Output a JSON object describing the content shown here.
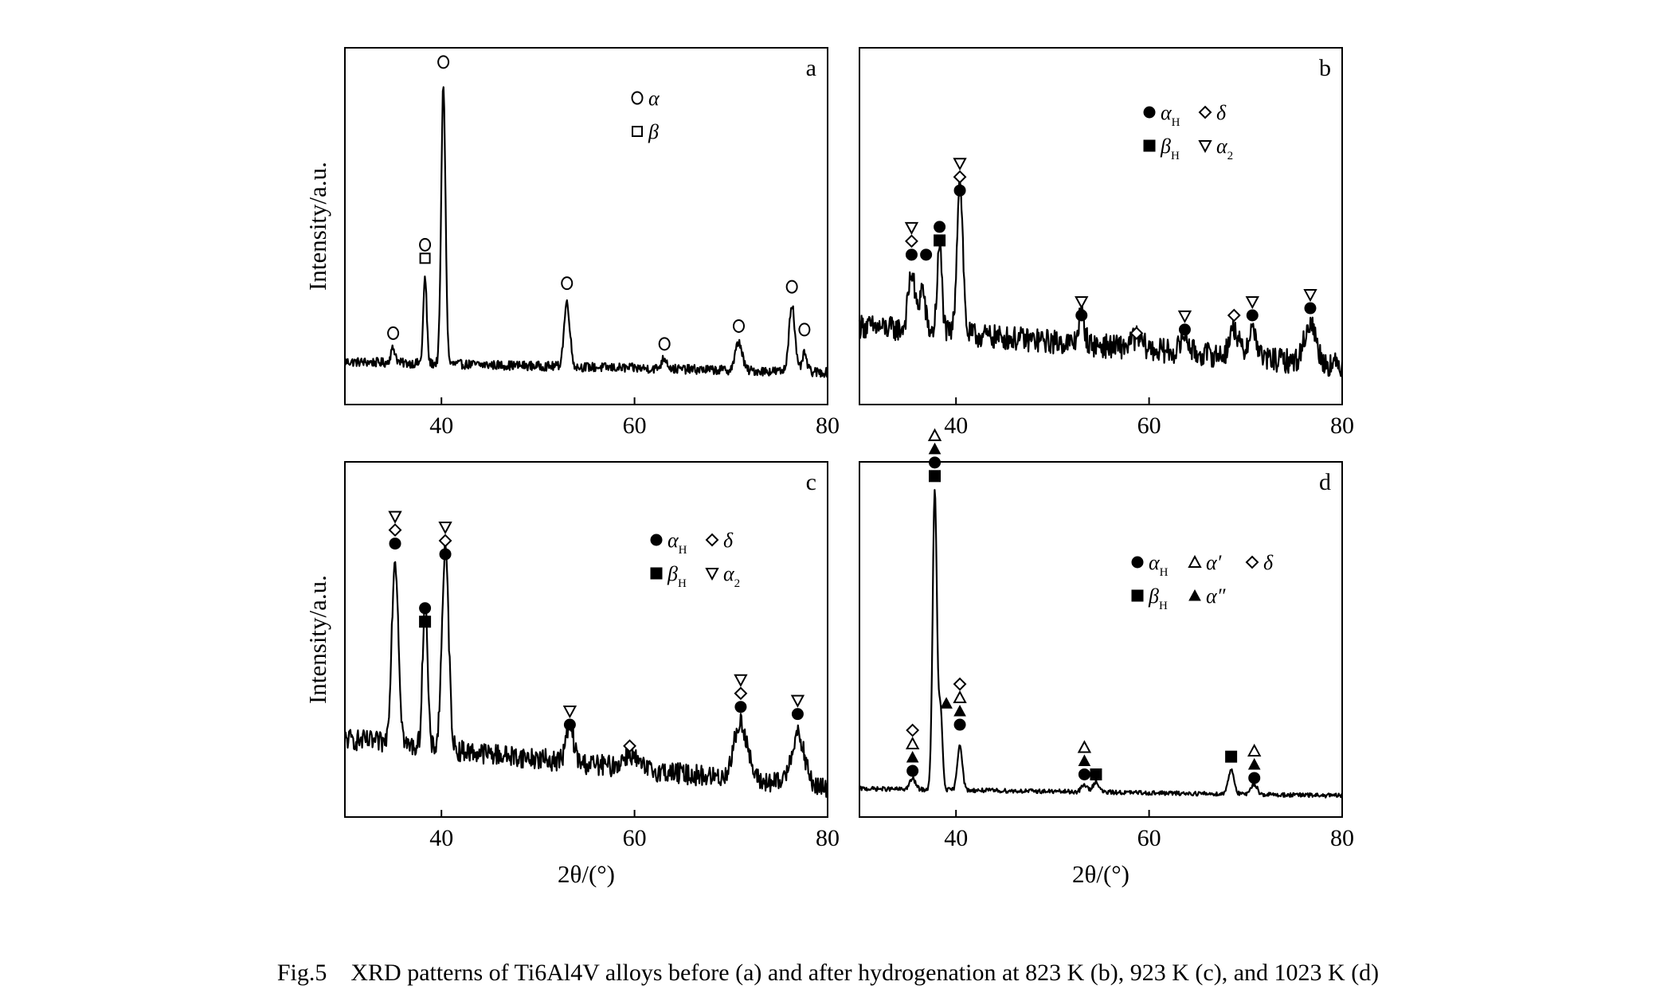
{
  "caption": "Fig.5    XRD patterns of Ti6Al4V alloys before (a) and after hydrogenation at 823 K (b), 923 K (c), and 1023 K (d)",
  "ylabel": "Intensity/a.u.",
  "xlabel": "2θ/(°)",
  "chart_data": [
    {
      "type": "line",
      "panel_label": "a",
      "xlim": [
        30,
        80
      ],
      "xticks": [
        "40",
        "60",
        "80"
      ],
      "ylabel": "Intensity/a.u.",
      "xlabel": "",
      "ylim": [
        0,
        100
      ],
      "baseline": 12,
      "slope": -0.06,
      "noise": 1.3,
      "peaks": [
        [
          35.0,
          4,
          0.25
        ],
        [
          38.3,
          24,
          0.18
        ],
        [
          40.2,
          78,
          0.22
        ],
        [
          53.0,
          18,
          0.3
        ],
        [
          63.1,
          3,
          0.3
        ],
        [
          70.8,
          8,
          0.35
        ],
        [
          76.3,
          19,
          0.3
        ],
        [
          77.6,
          5,
          0.25
        ]
      ],
      "legend": [
        {
          "marker": "open-circle",
          "label": "α"
        },
        {
          "marker": "open-square",
          "label": "β"
        }
      ],
      "annotations": [
        {
          "x": 35.0,
          "y": 20,
          "markers": [
            "open-circle"
          ]
        },
        {
          "x": 38.3,
          "y": 41,
          "markers": [
            "open-square",
            "open-circle"
          ]
        },
        {
          "x": 40.2,
          "y": 96,
          "markers": [
            "open-circle"
          ]
        },
        {
          "x": 53.0,
          "y": 34,
          "markers": [
            "open-circle"
          ]
        },
        {
          "x": 63.1,
          "y": 17,
          "markers": [
            "open-circle"
          ]
        },
        {
          "x": 70.8,
          "y": 22,
          "markers": [
            "open-circle"
          ]
        },
        {
          "x": 76.3,
          "y": 33,
          "markers": [
            "open-circle"
          ]
        },
        {
          "x": 77.6,
          "y": 21,
          "markers": [
            "open-circle"
          ]
        }
      ]
    },
    {
      "type": "line",
      "panel_label": "b",
      "xlim": [
        30,
        80
      ],
      "xticks": [
        "40",
        "60",
        "80"
      ],
      "ylabel": "",
      "xlabel": "",
      "ylim": [
        0,
        100
      ],
      "baseline": 22,
      "slope": -0.22,
      "noise": 3.4,
      "peaks": [
        [
          35.4,
          16,
          0.35
        ],
        [
          36.5,
          12,
          0.3
        ],
        [
          38.3,
          24,
          0.25
        ],
        [
          40.4,
          44,
          0.3
        ],
        [
          53.0,
          9,
          0.3
        ],
        [
          58.7,
          3,
          0.6
        ],
        [
          63.7,
          5,
          0.4
        ],
        [
          68.8,
          8,
          0.45
        ],
        [
          70.7,
          8,
          0.45
        ],
        [
          76.7,
          11,
          0.6
        ]
      ],
      "legend": [
        {
          "marker": "filled-circle",
          "label": "α",
          "sub": "H"
        },
        {
          "marker": "open-diamond",
          "label": "δ",
          "sub": ""
        },
        {
          "marker": "filled-square",
          "label": "β",
          "sub": "H"
        },
        {
          "marker": "open-triangle-down",
          "label": "α",
          "sub": "2"
        }
      ],
      "annotations": [
        {
          "x": 35.4,
          "y": 42,
          "markers": [
            "filled-circle",
            "open-diamond",
            "open-triangle-down"
          ]
        },
        {
          "x": 36.9,
          "y": 42,
          "markers": [
            "filled-circle"
          ]
        },
        {
          "x": 38.3,
          "y": 46,
          "markers": [
            "filled-square",
            "filled-circle"
          ]
        },
        {
          "x": 40.4,
          "y": 60,
          "markers": [
            "filled-circle",
            "open-diamond",
            "open-triangle-down"
          ]
        },
        {
          "x": 53.0,
          "y": 25,
          "markers": [
            "filled-circle",
            "open-triangle-down"
          ]
        },
        {
          "x": 58.7,
          "y": 20,
          "markers": [
            "open-diamond"
          ]
        },
        {
          "x": 63.7,
          "y": 21,
          "markers": [
            "filled-circle",
            "open-triangle-down"
          ]
        },
        {
          "x": 68.8,
          "y": 25,
          "markers": [
            "open-diamond"
          ]
        },
        {
          "x": 70.7,
          "y": 25,
          "markers": [
            "filled-circle",
            "open-triangle-down"
          ]
        },
        {
          "x": 76.7,
          "y": 27,
          "markers": [
            "filled-circle",
            "open-triangle-down"
          ]
        }
      ]
    },
    {
      "type": "line",
      "panel_label": "c",
      "xlim": [
        30,
        80
      ],
      "xticks": [
        "40",
        "60",
        "80"
      ],
      "ylabel": "Intensity/a.u.",
      "xlabel": "2θ/(°)",
      "ylim": [
        0,
        100
      ],
      "baseline": 22,
      "slope": -0.28,
      "noise": 3.0,
      "peaks": [
        [
          35.2,
          52,
          0.35
        ],
        [
          38.3,
          42,
          0.25
        ],
        [
          40.4,
          56,
          0.35
        ],
        [
          53.3,
          10,
          0.4
        ],
        [
          59.5,
          4,
          0.7
        ],
        [
          71.0,
          16,
          0.7
        ],
        [
          76.9,
          14,
          0.7
        ]
      ],
      "legend": [
        {
          "marker": "filled-circle",
          "label": "α",
          "sub": "H"
        },
        {
          "marker": "open-diamond",
          "label": "δ",
          "sub": ""
        },
        {
          "marker": "filled-square",
          "label": "β",
          "sub": "H"
        },
        {
          "marker": "open-triangle-down",
          "label": "α",
          "sub": "2"
        }
      ],
      "annotations": [
        {
          "x": 35.2,
          "y": 77,
          "markers": [
            "filled-circle",
            "open-diamond",
            "open-triangle-down"
          ]
        },
        {
          "x": 38.3,
          "y": 55,
          "markers": [
            "filled-square",
            "filled-circle"
          ]
        },
        {
          "x": 40.4,
          "y": 74,
          "markers": [
            "filled-circle",
            "open-diamond",
            "open-triangle-down"
          ]
        },
        {
          "x": 53.3,
          "y": 26,
          "markers": [
            "filled-circle",
            "open-triangle-down"
          ]
        },
        {
          "x": 59.5,
          "y": 20,
          "markers": [
            "open-diamond"
          ]
        },
        {
          "x": 71.0,
          "y": 31,
          "markers": [
            "filled-circle",
            "open-diamond",
            "open-triangle-down"
          ]
        },
        {
          "x": 76.9,
          "y": 29,
          "markers": [
            "filled-circle",
            "open-triangle-down"
          ]
        }
      ]
    },
    {
      "type": "line",
      "panel_label": "d",
      "xlim": [
        30,
        80
      ],
      "xticks": [
        "40",
        "60",
        "80"
      ],
      "ylabel": "",
      "xlabel": "2θ/(°)",
      "ylim": [
        0,
        100
      ],
      "baseline": 8,
      "slope": -0.04,
      "noise": 0.6,
      "peaks": [
        [
          35.5,
          3,
          0.3
        ],
        [
          37.8,
          84,
          0.22
        ],
        [
          38.4,
          22,
          0.2
        ],
        [
          40.4,
          13,
          0.25
        ],
        [
          53.3,
          2,
          0.3
        ],
        [
          54.5,
          3,
          0.3
        ],
        [
          68.5,
          7,
          0.3
        ],
        [
          70.9,
          3,
          0.3
        ]
      ],
      "legend": [
        {
          "marker": "filled-circle",
          "label": "α",
          "sub": "H"
        },
        {
          "marker": "open-triangle-up",
          "label": "α′",
          "sub": ""
        },
        {
          "marker": "open-diamond",
          "label": "δ",
          "sub": ""
        },
        {
          "marker": "filled-square",
          "label": "β",
          "sub": "H"
        },
        {
          "marker": "filled-triangle-up",
          "label": "α″",
          "sub": ""
        }
      ],
      "annotations": [
        {
          "x": 35.5,
          "y": 13,
          "markers": [
            "filled-circle",
            "filled-triangle-up",
            "open-triangle-up",
            "open-diamond"
          ]
        },
        {
          "x": 37.8,
          "y": 96,
          "markers": [
            "filled-square",
            "filled-circle",
            "filled-triangle-up",
            "open-triangle-up"
          ]
        },
        {
          "x": 39.0,
          "y": 32,
          "markers": [
            "filled-triangle-up"
          ]
        },
        {
          "x": 40.4,
          "y": 26,
          "markers": [
            "filled-circle",
            "filled-triangle-up",
            "open-triangle-up",
            "open-diamond"
          ]
        },
        {
          "x": 53.3,
          "y": 12,
          "markers": [
            "filled-circle",
            "filled-triangle-up",
            "open-triangle-up"
          ]
        },
        {
          "x": 54.5,
          "y": 12,
          "markers": [
            "filled-square"
          ]
        },
        {
          "x": 68.5,
          "y": 17,
          "markers": [
            "filled-square"
          ]
        },
        {
          "x": 70.9,
          "y": 11,
          "markers": [
            "filled-circle",
            "filled-triangle-up",
            "open-triangle-up"
          ]
        }
      ]
    }
  ]
}
